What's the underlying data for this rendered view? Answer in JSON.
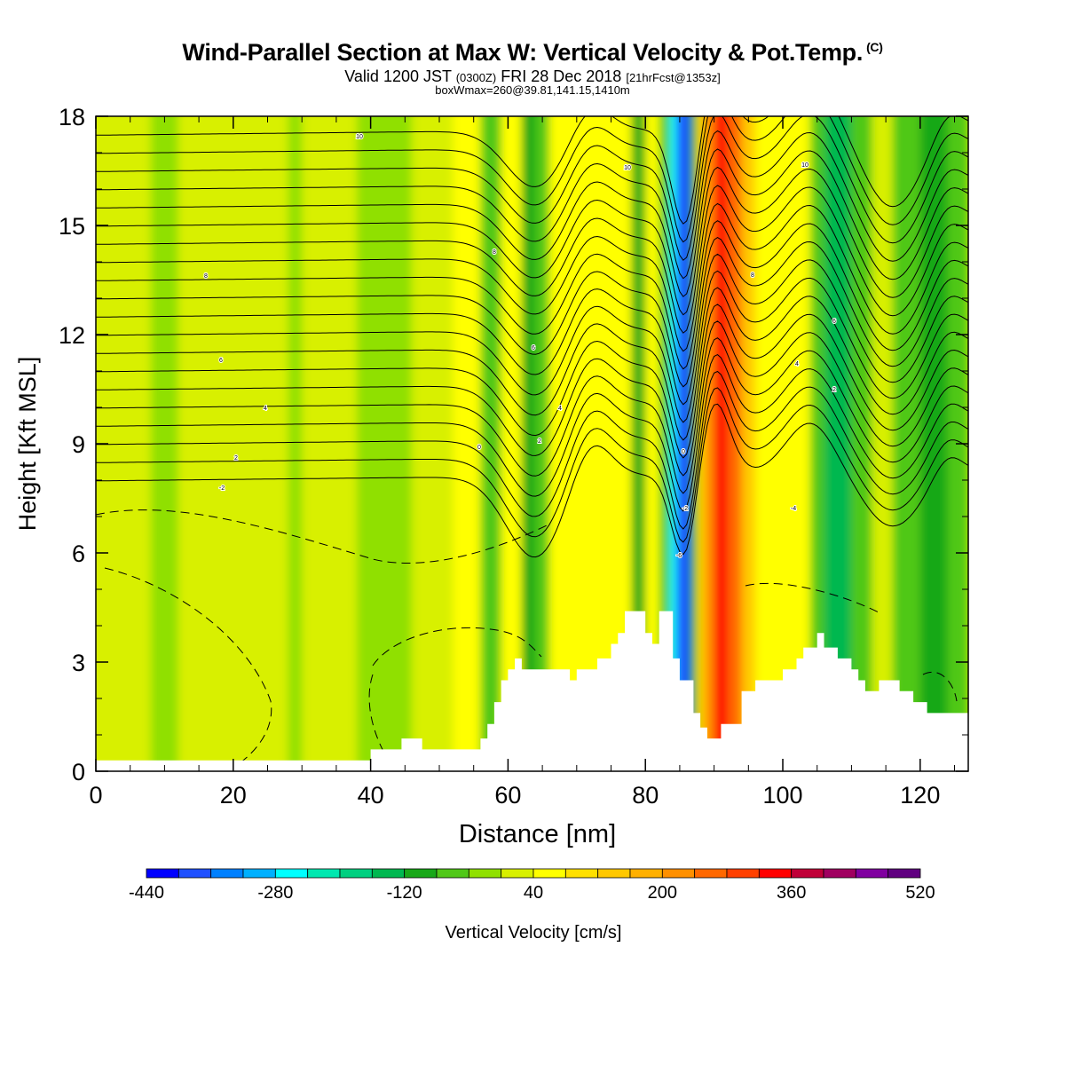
{
  "title": {
    "main": "Wind-Parallel Section at Max W: Vertical Velocity & Pot.Temp.",
    "copyright": "(C)",
    "valid_prefix": "Valid 1200 JST",
    "valid_utc": "(0300Z)",
    "valid_date": "FRI 28 Dec 2018",
    "forecast": "[21hrFcst@1353z]",
    "box": "boxWmax=260@39.81,141.15,1410m"
  },
  "chart_data": {
    "type": "heatmap",
    "xlabel": "Distance [nm]",
    "ylabel": "Height [Kft MSL]",
    "xlim": [
      0,
      127
    ],
    "ylim": [
      0,
      18
    ],
    "x_ticks": [
      0,
      20,
      40,
      60,
      80,
      100,
      120
    ],
    "y_ticks": [
      0,
      3,
      6,
      9,
      12,
      15,
      18
    ],
    "colorbar": {
      "label": "Vertical Velocity [cm/s]",
      "tick_labels": [
        "-440",
        "-280",
        "-120",
        "40",
        "200",
        "360",
        "520"
      ],
      "min": -440,
      "max": 520,
      "step": 40,
      "colors": [
        "#0000ff",
        "#1f50ff",
        "#0080ff",
        "#00b0ff",
        "#00ffff",
        "#00e8b0",
        "#00d080",
        "#00b850",
        "#18a818",
        "#50c818",
        "#90e000",
        "#d8f000",
        "#ffff00",
        "#ffe000",
        "#ffc800",
        "#ffb000",
        "#ff9000",
        "#ff6800",
        "#ff4000",
        "#ff0000",
        "#c00038",
        "#a00060",
        "#8000a0",
        "#600080"
      ]
    },
    "velocity_columns": [
      {
        "x": [
          0,
          8
        ],
        "w": 30
      },
      {
        "x": [
          8,
          12
        ],
        "w": -30
      },
      {
        "x": [
          12,
          28
        ],
        "w": 30
      },
      {
        "x": [
          28,
          30
        ],
        "w": -30
      },
      {
        "x": [
          30,
          38
        ],
        "w": 30
      },
      {
        "x": [
          38,
          46
        ],
        "w": -40
      },
      {
        "x": [
          46,
          52
        ],
        "w": 30
      },
      {
        "x": [
          52,
          56
        ],
        "w": 40
      },
      {
        "x": [
          56,
          59
        ],
        "w": -70
      },
      {
        "x": [
          59,
          62
        ],
        "w": 40
      },
      {
        "x": [
          62,
          64
        ],
        "w": -120
      },
      {
        "x": [
          64,
          66
        ],
        "w": -60
      },
      {
        "x": [
          66,
          70
        ],
        "w": 40
      },
      {
        "x": [
          70,
          74
        ],
        "w": 70
      },
      {
        "x": [
          74,
          78
        ],
        "w": 40
      },
      {
        "x": [
          78,
          80
        ],
        "w": -100
      },
      {
        "x": [
          80,
          82
        ],
        "w": 40
      },
      {
        "x": [
          82,
          83.5
        ],
        "w": -60
      },
      {
        "x": [
          83.5,
          84.5
        ],
        "w": -280
      },
      {
        "x": [
          84.5,
          86.5
        ],
        "w": -400
      },
      {
        "x": [
          86.5,
          87.5
        ],
        "w": -120
      },
      {
        "x": [
          87.5,
          88.5
        ],
        "w": 80
      },
      {
        "x": [
          88.5,
          90
        ],
        "w": 220
      },
      {
        "x": [
          90,
          92
        ],
        "w": 330
      },
      {
        "x": [
          92,
          94
        ],
        "w": 260
      },
      {
        "x": [
          94,
          96
        ],
        "w": 140
      },
      {
        "x": [
          96,
          100
        ],
        "w": 70
      },
      {
        "x": [
          100,
          104
        ],
        "w": 40
      },
      {
        "x": [
          104,
          106
        ],
        "w": -50
      },
      {
        "x": [
          106,
          110
        ],
        "w": -160
      },
      {
        "x": [
          110,
          113
        ],
        "w": -60
      },
      {
        "x": [
          113,
          116
        ],
        "w": 30
      },
      {
        "x": [
          116,
          120
        ],
        "w": -60
      },
      {
        "x": [
          120,
          124
        ],
        "w": -100
      },
      {
        "x": [
          124,
          127
        ],
        "w": -60
      }
    ],
    "terrain": {
      "x": [
        0,
        40,
        40,
        44.5,
        44.5,
        47.5,
        47.5,
        56,
        56,
        57,
        57,
        58,
        58,
        59,
        59,
        60,
        60,
        61,
        61,
        62,
        62,
        63,
        63,
        64,
        64,
        69,
        69,
        70,
        70,
        73,
        73,
        75,
        75,
        76,
        76,
        77,
        77,
        78,
        78,
        80,
        80,
        81,
        81,
        82,
        82,
        84,
        84,
        85,
        85,
        87,
        87,
        88,
        88,
        89,
        89,
        91,
        91,
        94,
        94,
        96,
        96,
        100,
        100,
        102,
        102,
        103,
        103,
        104,
        104,
        105,
        105,
        106,
        106,
        108,
        108,
        110,
        110,
        111,
        111,
        112,
        112,
        113,
        113,
        114,
        114,
        117,
        117,
        119,
        119,
        120,
        120,
        121,
        121,
        124,
        124,
        127
      ],
      "y": [
        0.3,
        0.3,
        0.6,
        0.6,
        0.9,
        0.9,
        0.6,
        0.6,
        0.9,
        0.9,
        1.3,
        1.3,
        1.9,
        1.9,
        2.5,
        2.5,
        2.8,
        2.8,
        3.1,
        3.1,
        2.8,
        2.8,
        2.8,
        2.8,
        2.8,
        2.8,
        2.5,
        2.5,
        2.8,
        2.8,
        3.1,
        3.1,
        3.5,
        3.5,
        3.8,
        3.8,
        4.4,
        4.4,
        4.4,
        4.4,
        3.8,
        3.8,
        3.5,
        3.5,
        4.4,
        4.4,
        3.1,
        3.1,
        2.5,
        2.5,
        1.6,
        1.6,
        1.2,
        1.2,
        0.9,
        0.9,
        1.3,
        1.3,
        2.2,
        2.2,
        2.5,
        2.5,
        2.8,
        2.8,
        3.1,
        3.1,
        3.4,
        3.4,
        3.4,
        3.4,
        3.8,
        3.8,
        3.4,
        3.4,
        3.1,
        3.1,
        2.8,
        2.8,
        2.5,
        2.5,
        2.2,
        2.2,
        2.2,
        2.2,
        2.5,
        2.5,
        2.2,
        2.2,
        1.9,
        1.9,
        1.9,
        1.9,
        1.6,
        1.6,
        1.6,
        1.6
      ]
    },
    "contour_labels": [
      "10",
      "10",
      "10",
      "8",
      "8",
      "8",
      "6",
      "6",
      "6",
      "4",
      "4",
      "4",
      "2",
      "2",
      "2",
      "0",
      "0",
      "-2",
      "-2",
      "-4",
      "-6"
    ]
  }
}
